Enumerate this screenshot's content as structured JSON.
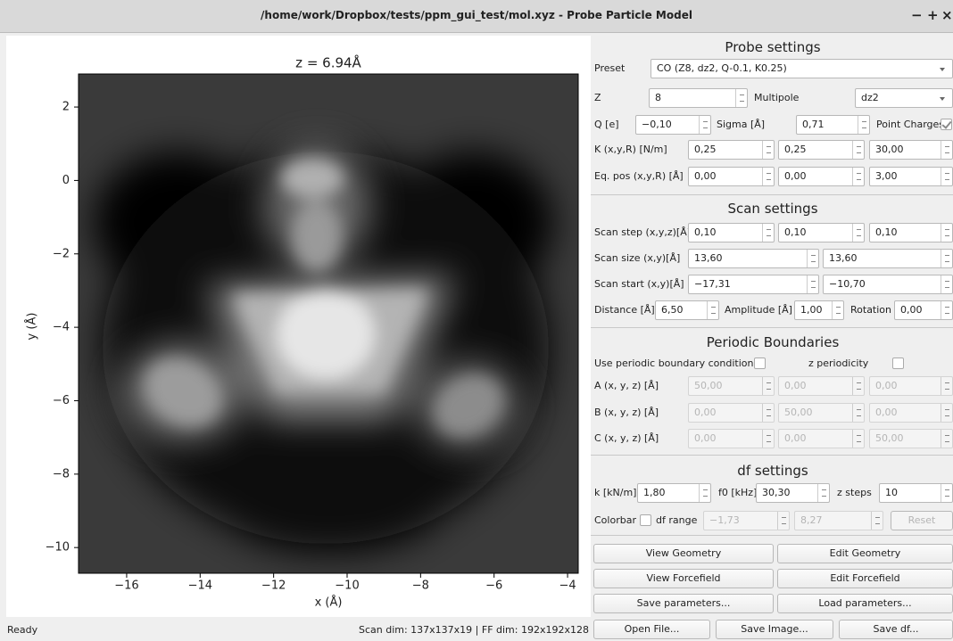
{
  "window": {
    "title": "/home/work/Dropbox/tests/ppm_gui_test/mol.xyz - Probe Particle Model",
    "buttons": [
      "−",
      "+",
      "×"
    ]
  },
  "plot": {
    "title": "z = 6.94Å",
    "x_label": "x (Å)",
    "y_label": "y (Å)",
    "xlim": [
      -17.31,
      -3.71
    ],
    "ylim": [
      -10.7,
      2.9
    ],
    "xticks": [
      {
        "value": -16,
        "label": "−16"
      },
      {
        "value": -14,
        "label": "−14"
      },
      {
        "value": -12,
        "label": "−12"
      },
      {
        "value": -10,
        "label": "−10"
      },
      {
        "value": -8,
        "label": "−8"
      },
      {
        "value": -6,
        "label": "−6"
      },
      {
        "value": -4,
        "label": "−4"
      }
    ],
    "yticks": [
      2,
      0,
      {
        "value": -2,
        "label": "−2"
      },
      {
        "value": -4,
        "label": "−4"
      },
      {
        "value": -6,
        "label": "−6"
      },
      {
        "value": -8,
        "label": "−8"
      },
      {
        "value": -10,
        "label": "−10"
      }
    ]
  },
  "status": {
    "left": "Ready",
    "right": "Scan dim: 137x137x19 | FF dim: 192x192x128"
  },
  "probe_settings": {
    "title": "Probe settings",
    "preset": {
      "label": "Preset",
      "value": "CO (Z8, dz2, Q-0.1, K0.25)"
    },
    "z": {
      "label": "Z",
      "value": "8"
    },
    "multipole": {
      "label": "Multipole",
      "value": "dz2"
    },
    "q": {
      "label": "Q [e]",
      "value": "−0,10"
    },
    "sigma": {
      "label": "Sigma [Å]",
      "value": "0,71"
    },
    "point_charges": {
      "label": "Point Charges",
      "checked": true
    },
    "k": {
      "label": "K (x,y,R) [N/m]",
      "values": [
        "0,25",
        "0,25",
        "30,00"
      ]
    },
    "eq_pos": {
      "label": "Eq. pos (x,y,R) [Å]",
      "values": [
        "0,00",
        "0,00",
        "3,00"
      ]
    }
  },
  "scan_settings": {
    "title": "Scan settings",
    "scan_step": {
      "label": "Scan step (x,y,z)[Å]",
      "values": [
        "0,10",
        "0,10",
        "0,10"
      ]
    },
    "scan_size": {
      "label": "Scan size (x,y)[Å]",
      "values": [
        "13,60",
        "13,60"
      ]
    },
    "scan_start": {
      "label": "Scan start (x,y)[Å]",
      "values": [
        "−17,31",
        "−10,70"
      ]
    },
    "distance": {
      "label": "Distance [Å]",
      "value": "6,50"
    },
    "amplitude": {
      "label": "Amplitude [Å]",
      "value": "1,00"
    },
    "rotation": {
      "label": "Rotation",
      "value": "0,00"
    }
  },
  "periodic_boundaries": {
    "title": "Periodic Boundaries",
    "use_pbc": {
      "label": "Use periodic boundary conditions",
      "checked": false
    },
    "z_periodicity": {
      "label": "z periodicity",
      "checked": false
    },
    "a": {
      "label": "A (x, y, z) [Å]",
      "values": [
        "50,00",
        "0,00",
        "0,00"
      ]
    },
    "b": {
      "label": "B (x, y, z) [Å]",
      "values": [
        "0,00",
        "50,00",
        "0,00"
      ]
    },
    "c": {
      "label": "C (x, y, z) [Å]",
      "values": [
        "0,00",
        "0,00",
        "50,00"
      ]
    }
  },
  "df_settings": {
    "title": "df settings",
    "k": {
      "label": "k [kN/m]",
      "value": "1,80"
    },
    "f0": {
      "label": "f0 [kHz]",
      "value": "30,30"
    },
    "z_steps": {
      "label": "z steps",
      "value": "10"
    },
    "colorbar": {
      "label": "Colorbar",
      "checked": false
    },
    "df_range": {
      "label": "df range",
      "values": [
        "−1,73",
        "8,27"
      ]
    },
    "reset": "Reset"
  },
  "buttons": [
    "View Geometry",
    "Edit Geometry",
    "View Forcefield",
    "Edit Forcefield",
    "Save parameters...",
    "Load parameters...",
    "Open File...",
    "Save Image...",
    "Save df..."
  ]
}
